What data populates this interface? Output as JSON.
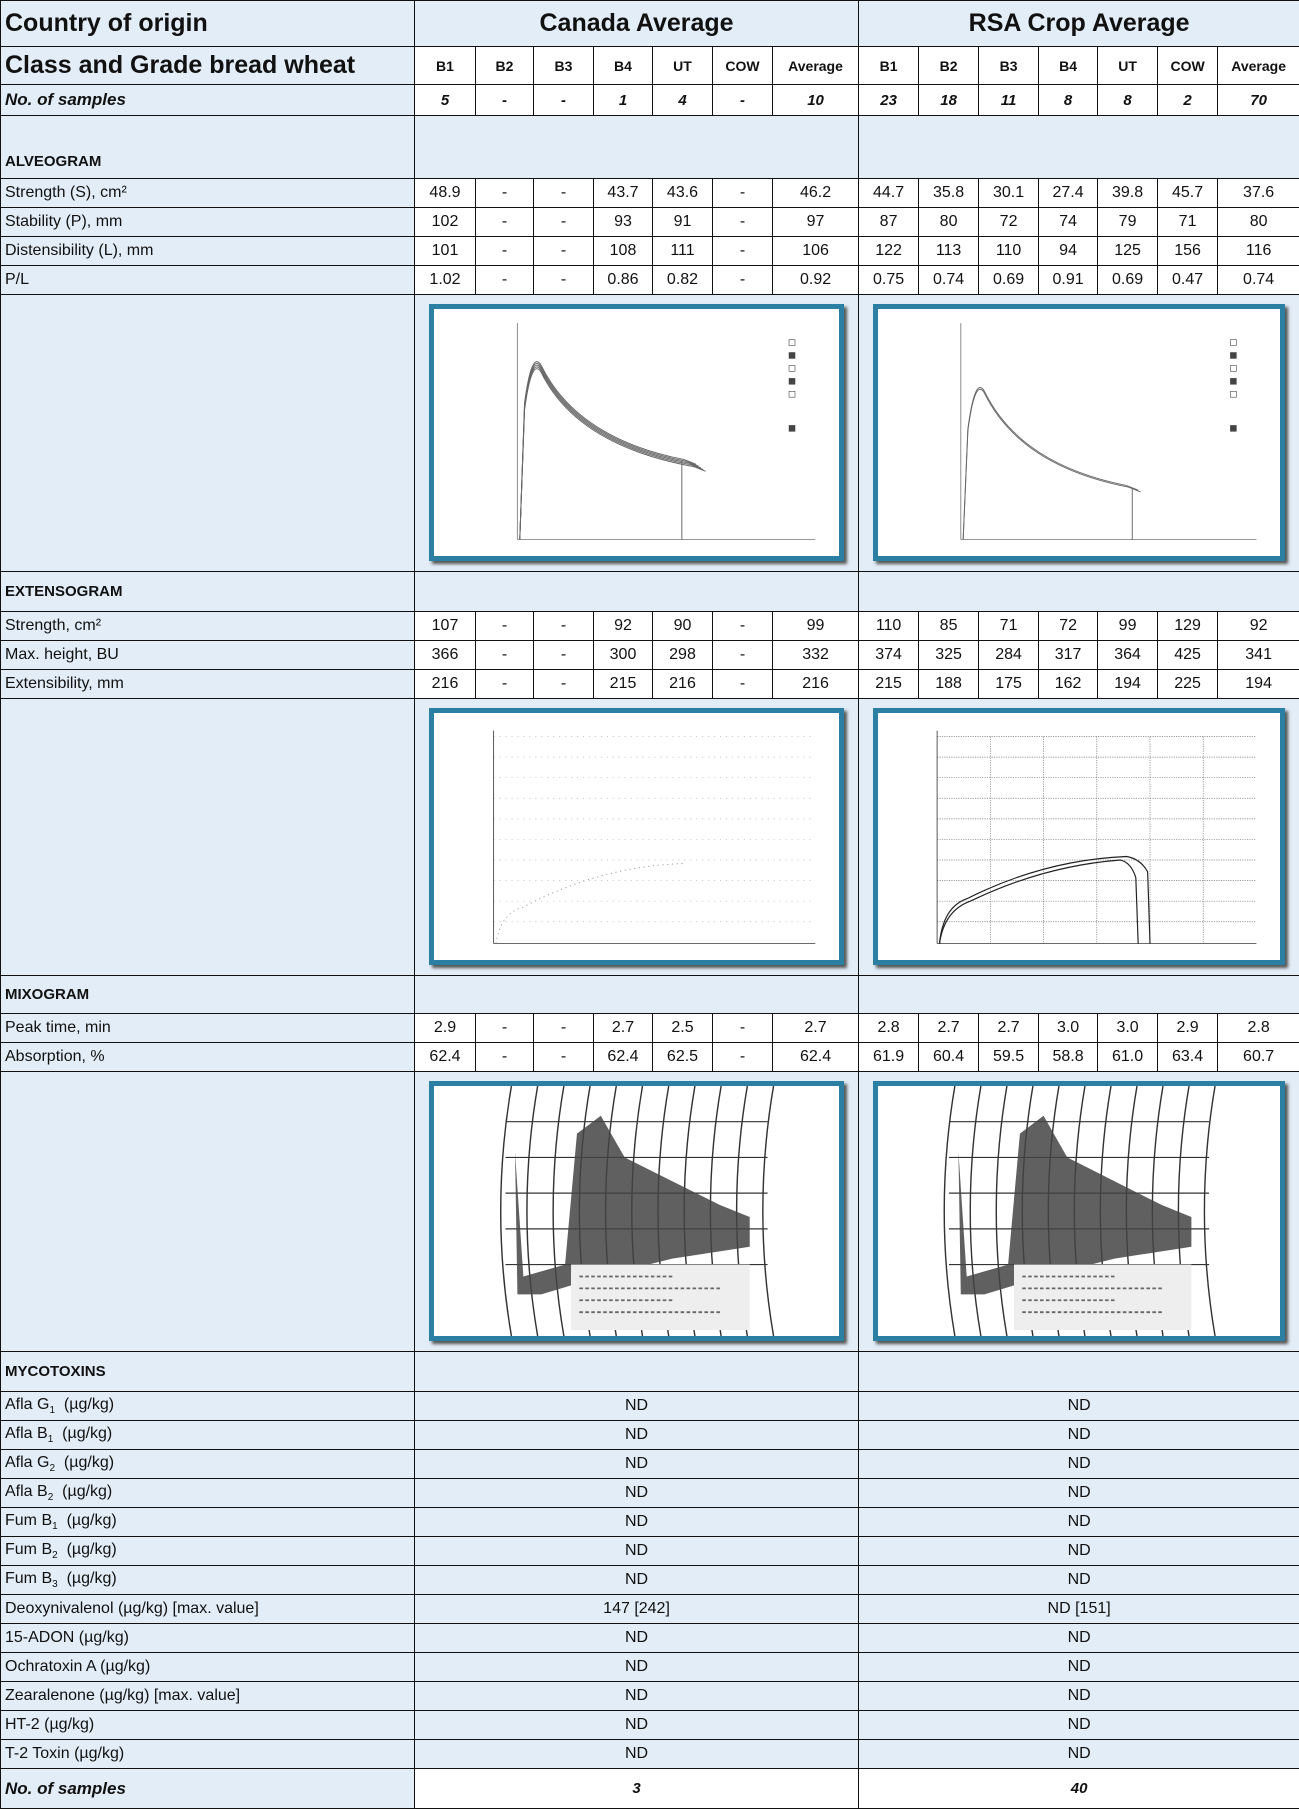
{
  "header": {
    "country_label": "Country of origin",
    "canada": "Canada Average",
    "rsa": "RSA Crop Average",
    "class_label": "Class and Grade bread wheat",
    "grades": [
      "B1",
      "B2",
      "B3",
      "B4",
      "UT",
      "COW",
      "Average"
    ],
    "samples_label": "No. of samples",
    "canada_samples": [
      "5",
      "-",
      "-",
      "1",
      "4",
      "-",
      "10"
    ],
    "rsa_samples": [
      "23",
      "18",
      "11",
      "8",
      "8",
      "2",
      "70"
    ]
  },
  "sections": [
    {
      "title": "ALVEOGRAM",
      "rows": [
        {
          "label": "Strength (S), cm²",
          "canada": [
            "48.9",
            "-",
            "-",
            "43.7",
            "43.6",
            "-",
            "46.2"
          ],
          "rsa": [
            "44.7",
            "35.8",
            "30.1",
            "27.4",
            "39.8",
            "45.7",
            "37.6"
          ]
        },
        {
          "label": "Stability (P), mm",
          "canada": [
            "102",
            "-",
            "-",
            "93",
            "91",
            "-",
            "97"
          ],
          "rsa": [
            "87",
            "80",
            "72",
            "74",
            "79",
            "71",
            "80"
          ]
        },
        {
          "label": "Distensibility (L), mm",
          "canada": [
            "101",
            "-",
            "-",
            "108",
            "111",
            "-",
            "106"
          ],
          "rsa": [
            "122",
            "113",
            "110",
            "94",
            "125",
            "156",
            "116"
          ]
        },
        {
          "label": "P/L",
          "canada": [
            "1.02",
            "-",
            "-",
            "0.86",
            "0.82",
            "-",
            "0.92"
          ],
          "rsa": [
            "0.75",
            "0.74",
            "0.69",
            "0.91",
            "0.69",
            "0.47",
            "0.74"
          ]
        }
      ]
    },
    {
      "title": "EXTENSOGRAM",
      "rows": [
        {
          "label": "Strength, cm²",
          "canada": [
            "107",
            "-",
            "-",
            "92",
            "90",
            "-",
            "99"
          ],
          "rsa": [
            "110",
            "85",
            "71",
            "72",
            "99",
            "129",
            "92"
          ]
        },
        {
          "label": "Max. height, BU",
          "canada": [
            "366",
            "-",
            "-",
            "300",
            "298",
            "-",
            "332"
          ],
          "rsa": [
            "374",
            "325",
            "284",
            "317",
            "364",
            "425",
            "341"
          ]
        },
        {
          "label": "Extensibility, mm",
          "canada": [
            "216",
            "-",
            "-",
            "215",
            "216",
            "-",
            "216"
          ],
          "rsa": [
            "215",
            "188",
            "175",
            "162",
            "194",
            "225",
            "194"
          ]
        }
      ]
    },
    {
      "title": "MIXOGRAM",
      "rows": [
        {
          "label": "Peak time, min",
          "canada": [
            "2.9",
            "-",
            "-",
            "2.7",
            "2.5",
            "-",
            "2.7"
          ],
          "rsa": [
            "2.8",
            "2.7",
            "2.7",
            "3.0",
            "3.0",
            "2.9",
            "2.8"
          ]
        },
        {
          "label": "Absorption, %",
          "canada": [
            "62.4",
            "-",
            "-",
            "62.4",
            "62.5",
            "-",
            "62.4"
          ],
          "rsa": [
            "61.9",
            "60.4",
            "59.5",
            "58.8",
            "61.0",
            "63.4",
            "60.7"
          ]
        }
      ]
    }
  ],
  "mycotoxins": {
    "title": "MYCOTOXINS",
    "rows": [
      {
        "label": "Afla G",
        "sub": "1",
        "unit": "(µg/kg)",
        "canada": "ND",
        "rsa": "ND"
      },
      {
        "label": "Afla B",
        "sub": "1",
        "unit": "(µg/kg)",
        "canada": "ND",
        "rsa": "ND"
      },
      {
        "label": "Afla G",
        "sub": "2",
        "unit": "(µg/kg)",
        "canada": "ND",
        "rsa": "ND"
      },
      {
        "label": "Afla B",
        "sub": "2",
        "unit": "(µg/kg)",
        "canada": "ND",
        "rsa": "ND"
      },
      {
        "label": "Fum B",
        "sub": "1",
        "unit": "(µg/kg)",
        "canada": "ND",
        "rsa": "ND"
      },
      {
        "label": "Fum B",
        "sub": "2",
        "unit": "(µg/kg)",
        "canada": "ND",
        "rsa": "ND"
      },
      {
        "label": "Fum B",
        "sub": "3",
        "unit": "(µg/kg)",
        "canada": "ND",
        "rsa": "ND"
      },
      {
        "label": "Deoxynivalenol (µg/kg) [max. value]",
        "canada": "147 [242]",
        "rsa": "ND [151]"
      },
      {
        "label": "15-ADON (µg/kg)",
        "canada": "ND",
        "rsa": "ND"
      },
      {
        "label": "Ochratoxin A (µg/kg)",
        "canada": "ND",
        "rsa": "ND"
      },
      {
        "label": "Zearalenone (µg/kg) [max. value]",
        "canada": "ND",
        "rsa": "ND"
      },
      {
        "label": "HT-2 (µg/kg)",
        "canada": "ND",
        "rsa": "ND"
      },
      {
        "label": "T-2 Toxin (µg/kg)",
        "canada": "ND",
        "rsa": "ND"
      }
    ]
  },
  "footer": {
    "label": "No. of samples",
    "canada": "3",
    "rsa": "40"
  }
}
